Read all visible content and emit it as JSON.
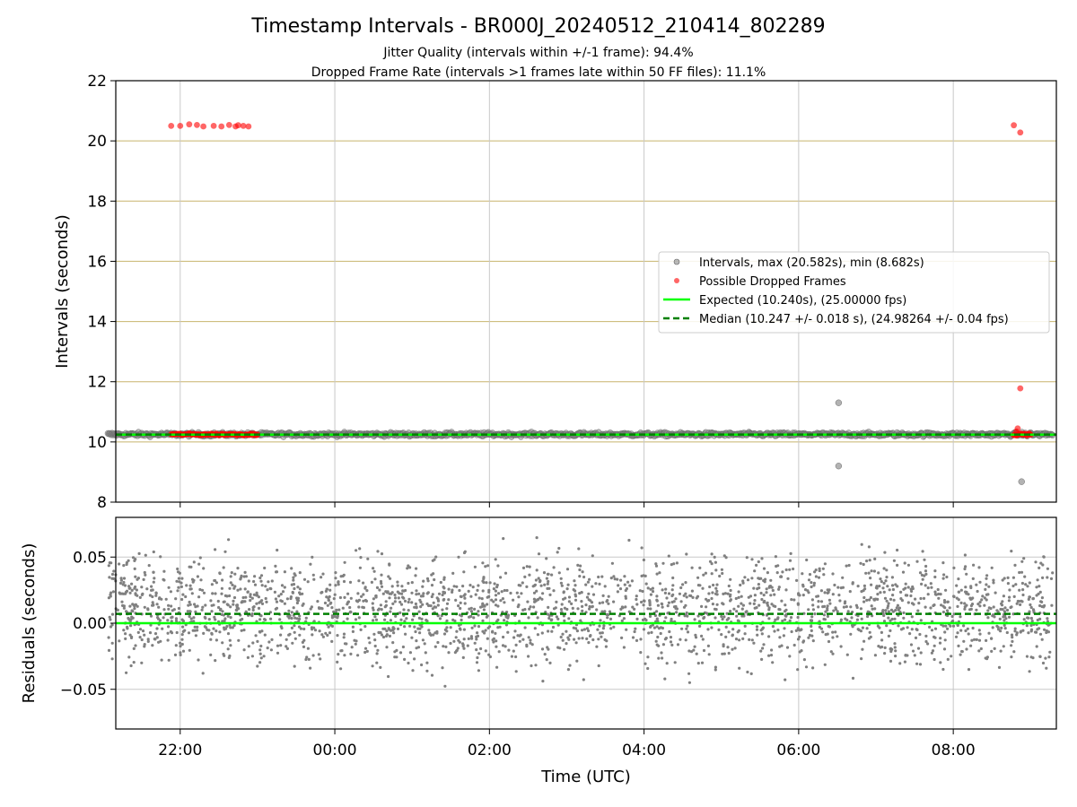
{
  "figure": {
    "title": "Timestamp Intervals - BR000J_20240512_210414_802289",
    "subtitle1": "Jitter Quality (intervals within +/-1 frame): 94.4%",
    "subtitle2": "Dropped Frame Rate (intervals >1 frames late within 50 FF files): 11.1%"
  },
  "colors": {
    "intervals": "#808080",
    "dropped": "#ff0000",
    "expected": "#00ff00",
    "median": "#008000",
    "hgrid": "#c8b46e",
    "vgrid": "#c8c8c8"
  },
  "chart_data": [
    {
      "type": "scatter",
      "ylabel": "Intervals (seconds)",
      "ylim": [
        8,
        22
      ],
      "yticks": [
        "8",
        "10",
        "12",
        "14",
        "16",
        "18",
        "20",
        "22"
      ],
      "xlim": [
        "21:10",
        "09:20"
      ],
      "grid": true,
      "legend": {
        "placement": "center-right",
        "entries": [
          "Intervals, max (20.582s), min (8.682s)",
          "Possible Dropped Frames",
          "Expected (10.240s), (25.00000 fps)",
          "Median (10.247 +/- 0.018 s), (24.98264 +/- 0.04 fps)"
        ]
      },
      "expected": 10.24,
      "median": 10.247,
      "intervals_band": {
        "x_start": "21:04",
        "x_end": "09:17",
        "center": 10.25,
        "spread": 0.05
      },
      "interval_outliers": [
        {
          "x": "06:31",
          "y": 11.3
        },
        {
          "x": "06:31",
          "y": 9.2
        },
        {
          "x": "08:53",
          "y": 8.68
        }
      ],
      "dropped_frames": [
        {
          "x": "21:53",
          "y": 20.5
        },
        {
          "x": "22:00",
          "y": 20.5
        },
        {
          "x": "22:07",
          "y": 20.55
        },
        {
          "x": "22:13",
          "y": 20.53
        },
        {
          "x": "22:18",
          "y": 20.48
        },
        {
          "x": "22:26",
          "y": 20.5
        },
        {
          "x": "22:32",
          "y": 20.48
        },
        {
          "x": "22:38",
          "y": 20.53
        },
        {
          "x": "22:43",
          "y": 20.48
        },
        {
          "x": "22:45",
          "y": 20.52
        },
        {
          "x": "22:49",
          "y": 20.5
        },
        {
          "x": "22:53",
          "y": 20.48
        },
        {
          "x": "08:47",
          "y": 20.52
        },
        {
          "x": "08:52",
          "y": 20.28
        },
        {
          "x": "08:52",
          "y": 11.78
        },
        {
          "x": "08:50",
          "y": 10.45
        },
        {
          "x": "08:49",
          "y": 10.35
        }
      ],
      "dropped_band": [
        {
          "x_start": "21:53",
          "x_end": "23:00",
          "y": 10.25
        },
        {
          "x_start": "08:47",
          "x_end": "09:00",
          "y": 10.25
        }
      ]
    },
    {
      "type": "scatter",
      "xlabel": "Time (UTC)",
      "ylabel": "Residuals (seconds)",
      "ylim": [
        -0.08,
        0.08
      ],
      "yticks": [
        "−0.05",
        "0.00",
        "0.05"
      ],
      "xticks": [
        "22:00",
        "00:00",
        "02:00",
        "04:00",
        "06:00",
        "08:00"
      ],
      "xlim": [
        "21:10",
        "09:20"
      ],
      "grid": true,
      "expected": 0.0,
      "median": 0.007,
      "residuals_band": {
        "x_start": "21:04",
        "x_end": "09:17",
        "center": 0.01,
        "spread": 0.02
      }
    }
  ]
}
